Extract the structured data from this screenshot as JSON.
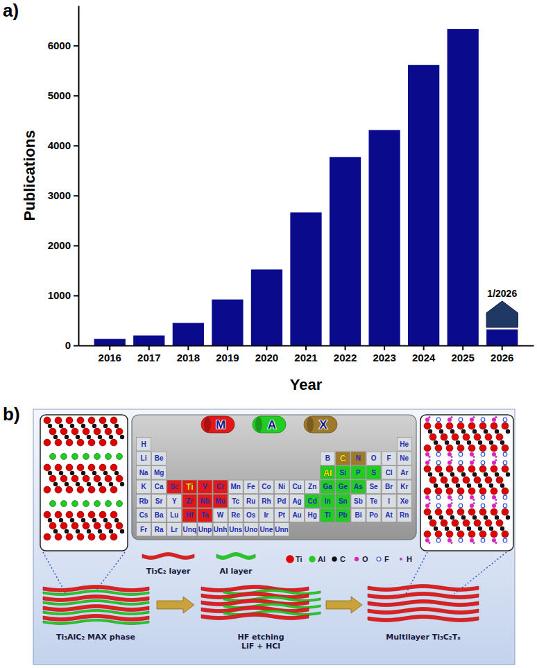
{
  "chart_data": {
    "type": "bar",
    "panel_label": "a)",
    "x_label": "Year",
    "y_label": "Publications",
    "categories": [
      "2016",
      "2017",
      "2018",
      "2019",
      "2020",
      "2021",
      "2022",
      "2023",
      "2024",
      "2025",
      "2026"
    ],
    "values": [
      130,
      200,
      450,
      920,
      1520,
      2660,
      3770,
      4310,
      5610,
      6330,
      320
    ],
    "color": "#0a0a8c",
    "ylim": [
      0,
      6800
    ],
    "yticks": [
      0,
      1000,
      2000,
      3000,
      4000,
      5000,
      6000
    ],
    "annotations": [
      {
        "text": "1/2026",
        "category": "2026"
      }
    ]
  },
  "diagram": {
    "panel_label": "b)",
    "site_legend": [
      {
        "symbol": "M",
        "color": "#e01818",
        "elements": [
          "Sc",
          "Ti",
          "V",
          "Cr",
          "Zr",
          "Nb",
          "Mo",
          "Hf",
          "Ta"
        ]
      },
      {
        "symbol": "A",
        "color": "#22cc22",
        "elements": [
          "Al",
          "Si",
          "P",
          "S",
          "Ga",
          "Ge",
          "As",
          "Cd",
          "In",
          "Sn",
          "Tl",
          "Pb"
        ]
      },
      {
        "symbol": "X",
        "color": "#a07a2c",
        "elements": [
          "C",
          "N"
        ]
      }
    ],
    "periodic_table": {
      "highlight": [
        "Ti",
        "Al",
        "C"
      ],
      "rows": [
        {
          "left": [
            "H"
          ],
          "right": [
            "He"
          ]
        },
        {
          "left": [
            "Li",
            "Be"
          ],
          "right": [
            "B",
            "C",
            "N",
            "O",
            "F",
            "Ne"
          ]
        },
        {
          "left": [
            "Na",
            "Mg"
          ],
          "right": [
            "Al",
            "Si",
            "P",
            "S",
            "Cl",
            "Ar"
          ]
        },
        {
          "left": [
            "K",
            "Ca",
            "Sc",
            "Ti",
            "V",
            "Cr",
            "Mn",
            "Fe",
            "Co",
            "Ni",
            "Cu",
            "Zn",
            "Ga",
            "Ge",
            "As",
            "Se",
            "Br",
            "Kr"
          ],
          "right": []
        },
        {
          "left": [
            "Rb",
            "Sr",
            "Y",
            "Zr",
            "Nb",
            "Mo",
            "Tc",
            "Ru",
            "Rh",
            "Pd",
            "Ag",
            "Cd",
            "In",
            "Sn",
            "Sb",
            "Te",
            "I",
            "Xe"
          ],
          "right": []
        },
        {
          "left": [
            "Cs",
            "Ba",
            "Lu",
            "Hf",
            "Ta",
            "W",
            "Re",
            "Os",
            "Ir",
            "Pt",
            "Au",
            "Hg",
            "Tl",
            "Pb",
            "Bi",
            "Po",
            "At",
            "Rn"
          ],
          "right": []
        },
        {
          "left": [
            "Fr",
            "Ra",
            "Lr",
            "Unq",
            "Unp",
            "Unh",
            "Uns",
            "Uno",
            "Une",
            "Unn"
          ],
          "right": []
        }
      ]
    },
    "layer_legend": [
      {
        "label": "Ti₃C₂ layer",
        "color": "#e02020"
      },
      {
        "label": "Al layer",
        "color": "#22cc22"
      }
    ],
    "atom_legend": [
      {
        "symbol": "Ti",
        "color": "#e00000"
      },
      {
        "symbol": "Al",
        "color": "#22cc22"
      },
      {
        "symbol": "C",
        "color": "#111111"
      },
      {
        "symbol": "O",
        "color": "#e020c0"
      },
      {
        "symbol": "F",
        "color": "#3050e0"
      },
      {
        "symbol": "H",
        "color": "#b040c0"
      }
    ],
    "stages": [
      {
        "lines": [
          "Ti₃AlC₂ MAX phase"
        ]
      },
      {
        "lines": [
          "HF etching",
          "LiF + HCl"
        ]
      },
      {
        "lines": [
          "Multilayer Ti₃C₂Tₓ"
        ]
      }
    ]
  }
}
